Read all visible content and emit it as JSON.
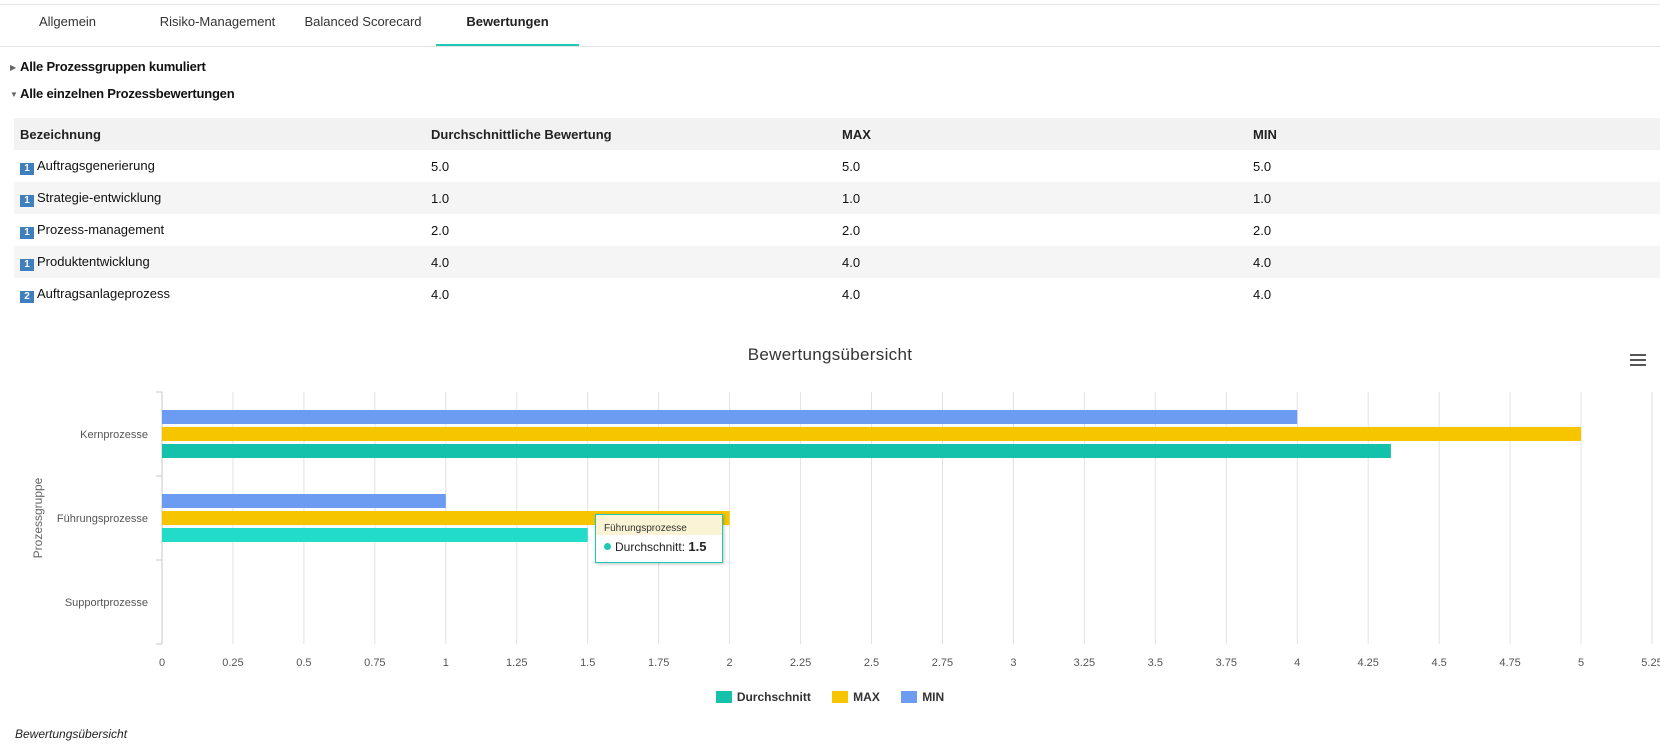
{
  "tabs": [
    {
      "label": "Allgemein",
      "active": false
    },
    {
      "label": "Risiko-Management",
      "active": false
    },
    {
      "label": "Balanced Scorecard",
      "active": false
    },
    {
      "label": "Bewertungen",
      "active": true
    }
  ],
  "sections": {
    "cumulative": "Alle Prozessgruppen kumuliert",
    "individual": "Alle einzelnen Prozessbewertungen"
  },
  "table": {
    "headers": [
      "Bezeichnung",
      "Durchschnittliche Bewertung",
      "MAX",
      "MIN"
    ],
    "rows": [
      {
        "badge": "1",
        "name": "Auftragsgenerierung",
        "avg": "5.0",
        "max": "5.0",
        "min": "5.0"
      },
      {
        "badge": "1",
        "name": "Strategie-entwicklung",
        "avg": "1.0",
        "max": "1.0",
        "min": "1.0"
      },
      {
        "badge": "1",
        "name": "Prozess-management",
        "avg": "2.0",
        "max": "2.0",
        "min": "2.0"
      },
      {
        "badge": "1",
        "name": "Produktentwicklung",
        "avg": "4.0",
        "max": "4.0",
        "min": "4.0"
      },
      {
        "badge": "2",
        "name": "Auftragsanlageprozess",
        "avg": "4.0",
        "max": "4.0",
        "min": "4.0"
      }
    ]
  },
  "chart_data": {
    "type": "bar",
    "orientation": "horizontal",
    "title": "Bewertungsübersicht",
    "ylabel": "Prozessgruppe",
    "xlabel": "",
    "categories": [
      "Kernprozesse",
      "Führungsprozesse",
      "Supportprozesse"
    ],
    "series": [
      {
        "name": "MIN",
        "color": "#6b9cf2",
        "values": [
          4,
          1,
          null
        ]
      },
      {
        "name": "MAX",
        "color": "#f7c500",
        "values": [
          5,
          2,
          null
        ]
      },
      {
        "name": "Durchschnitt",
        "color": "#14c2ac",
        "values": [
          4.33,
          1.5,
          null
        ]
      }
    ],
    "xlim": [
      0,
      5.25
    ],
    "xticks": [
      "0",
      "0.25",
      "0.5",
      "0.75",
      "1",
      "1.25",
      "1.5",
      "1.75",
      "2",
      "2.25",
      "2.5",
      "2.75",
      "3",
      "3.25",
      "3.5",
      "3.75",
      "4",
      "4.25",
      "4.5",
      "4.75",
      "5",
      "5.25"
    ],
    "grid": true,
    "legend_position": "bottom-center",
    "legend_order": [
      "Durchschnitt",
      "MAX",
      "MIN"
    ]
  },
  "tooltip": {
    "category": "Führungsprozesse",
    "series_label": "Durchschnitt:",
    "value": "1.5",
    "hover_color": "#22dbc9"
  },
  "caption": "Bewertungsübersicht",
  "icons": {
    "chart_menu": "hamburger-menu-icon"
  }
}
